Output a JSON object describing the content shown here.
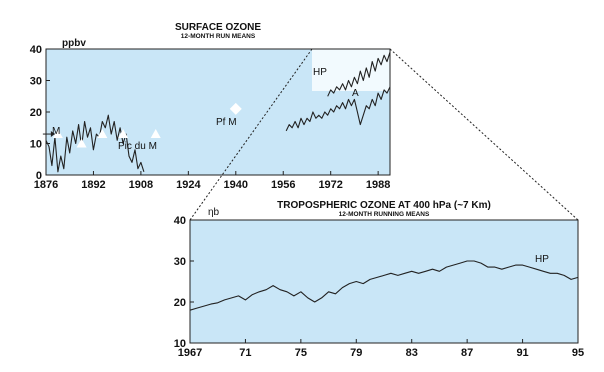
{
  "chart_data": [
    {
      "type": "line",
      "title": "SURFACE OZONE",
      "subtitle": "12-MONTH RUN MEANS",
      "ylabel": "ppbv",
      "xlim": [
        1876,
        1992
      ],
      "ylim": [
        0,
        40
      ],
      "x_ticks": [
        "1876",
        "1892",
        "1908",
        "1924",
        "1940",
        "1956",
        "1972",
        "1988"
      ],
      "y_ticks": [
        "0",
        "10",
        "20",
        "30",
        "40"
      ],
      "grid": false,
      "series": [
        {
          "name": "M",
          "marker": "arrow",
          "points": [
            [
              1876,
              11
            ],
            [
              1877,
              9
            ],
            [
              1878,
              3
            ],
            [
              1879,
              12
            ],
            [
              1880,
              1
            ],
            [
              1881,
              6
            ],
            [
              1882,
              2
            ],
            [
              1883,
              12
            ],
            [
              1884,
              7
            ],
            [
              1885,
              14
            ],
            [
              1886,
              10
            ],
            [
              1887,
              16
            ],
            [
              1888,
              9
            ],
            [
              1889,
              17
            ],
            [
              1890,
              12
            ],
            [
              1891,
              15
            ],
            [
              1892,
              8
            ],
            [
              1893,
              13
            ],
            [
              1894,
              12
            ],
            [
              1895,
              17
            ],
            [
              1896,
              15
            ],
            [
              1897,
              19
            ],
            [
              1898,
              13
            ],
            [
              1899,
              17
            ],
            [
              1900,
              11
            ],
            [
              1901,
              15
            ],
            [
              1902,
              10
            ],
            [
              1903,
              13
            ],
            [
              1904,
              6
            ],
            [
              1905,
              4
            ],
            [
              1906,
              8
            ],
            [
              1907,
              2
            ],
            [
              1908,
              4
            ],
            [
              1909,
              1
            ]
          ]
        },
        {
          "name": "Pic du M",
          "marker": "triangle",
          "points": [
            [
              1880,
              13
            ],
            [
              1888,
              10
            ],
            [
              1895,
              13
            ],
            [
              1902,
              13
            ],
            [
              1913,
              13
            ]
          ]
        },
        {
          "name": "Pf M",
          "marker": "diamond",
          "points": [
            [
              1940,
              21
            ]
          ]
        },
        {
          "name": "HP",
          "points": [
            [
              1971,
              25
            ],
            [
              1972,
              27
            ],
            [
              1973,
              26
            ],
            [
              1974,
              28
            ],
            [
              1975,
              27
            ],
            [
              1976,
              29
            ],
            [
              1977,
              27
            ],
            [
              1978,
              30
            ],
            [
              1979,
              28
            ],
            [
              1980,
              31
            ],
            [
              1981,
              29
            ],
            [
              1982,
              33
            ],
            [
              1983,
              30
            ],
            [
              1984,
              34
            ],
            [
              1985,
              31
            ],
            [
              1986,
              36
            ],
            [
              1987,
              33
            ],
            [
              1988,
              37
            ],
            [
              1989,
              35
            ],
            [
              1990,
              38
            ],
            [
              1991,
              36
            ],
            [
              1992,
              39
            ]
          ]
        },
        {
          "name": "A",
          "points": [
            [
              1957,
              14
            ],
            [
              1958,
              16
            ],
            [
              1959,
              15
            ],
            [
              1960,
              17
            ],
            [
              1961,
              15
            ],
            [
              1962,
              18
            ],
            [
              1963,
              16
            ],
            [
              1964,
              18
            ],
            [
              1965,
              17
            ],
            [
              1966,
              20
            ],
            [
              1967,
              18
            ],
            [
              1968,
              19
            ],
            [
              1969,
              18
            ],
            [
              1970,
              20
            ],
            [
              1971,
              19
            ],
            [
              1972,
              21
            ],
            [
              1973,
              20
            ],
            [
              1974,
              22
            ],
            [
              1975,
              21
            ],
            [
              1976,
              23
            ],
            [
              1977,
              21
            ],
            [
              1978,
              24
            ],
            [
              1979,
              22
            ],
            [
              1980,
              24
            ],
            [
              1981,
              20
            ],
            [
              1982,
              16
            ],
            [
              1983,
              19
            ],
            [
              1984,
              22
            ],
            [
              1985,
              21
            ],
            [
              1986,
              24
            ],
            [
              1987,
              22
            ],
            [
              1988,
              26
            ],
            [
              1989,
              24
            ],
            [
              1990,
              27
            ],
            [
              1991,
              26
            ],
            [
              1992,
              28
            ]
          ]
        }
      ]
    },
    {
      "type": "line",
      "title": "TROPOSPHERIC OZONE AT 400 hPa (~7 Km)",
      "subtitle": "12-MONTH RUNNING MEANS",
      "ylabel": "ηb",
      "xlim": [
        1967,
        1995
      ],
      "ylim": [
        10,
        40
      ],
      "x_ticks": [
        "1967",
        "71",
        "75",
        "79",
        "83",
        "87",
        "91",
        "95"
      ],
      "y_ticks": [
        "10",
        "20",
        "30",
        "40"
      ],
      "grid": false,
      "series": [
        {
          "name": "HP",
          "points": [
            [
              1967.0,
              18
            ],
            [
              1967.5,
              18.5
            ],
            [
              1968.0,
              19
            ],
            [
              1968.5,
              19.5
            ],
            [
              1969.0,
              19.8
            ],
            [
              1969.5,
              20.5
            ],
            [
              1970.0,
              21
            ],
            [
              1970.5,
              21.5
            ],
            [
              1971.0,
              20.5
            ],
            [
              1971.5,
              21.8
            ],
            [
              1972.0,
              22.5
            ],
            [
              1972.5,
              23
            ],
            [
              1973.0,
              24
            ],
            [
              1973.5,
              23
            ],
            [
              1974.0,
              22.5
            ],
            [
              1974.5,
              21.5
            ],
            [
              1975.0,
              22.5
            ],
            [
              1975.5,
              21
            ],
            [
              1976.0,
              20
            ],
            [
              1976.5,
              21
            ],
            [
              1977.0,
              22.5
            ],
            [
              1977.5,
              22
            ],
            [
              1978.0,
              23.5
            ],
            [
              1978.5,
              24.5
            ],
            [
              1979.0,
              25
            ],
            [
              1979.5,
              24.5
            ],
            [
              1980.0,
              25.5
            ],
            [
              1980.5,
              26
            ],
            [
              1981.0,
              26.5
            ],
            [
              1981.5,
              27
            ],
            [
              1982.0,
              26.5
            ],
            [
              1982.5,
              27
            ],
            [
              1983.0,
              27.5
            ],
            [
              1983.5,
              27
            ],
            [
              1984.0,
              27.5
            ],
            [
              1984.5,
              28
            ],
            [
              1985.0,
              27.5
            ],
            [
              1985.5,
              28.5
            ],
            [
              1986.0,
              29
            ],
            [
              1986.5,
              29.5
            ],
            [
              1987.0,
              30
            ],
            [
              1987.5,
              30
            ],
            [
              1988.0,
              29.5
            ],
            [
              1988.5,
              28.5
            ],
            [
              1989.0,
              28.5
            ],
            [
              1989.5,
              28
            ],
            [
              1990.0,
              28.5
            ],
            [
              1990.5,
              29
            ],
            [
              1991.0,
              29
            ],
            [
              1991.5,
              28.5
            ],
            [
              1992.0,
              28
            ],
            [
              1992.5,
              27.5
            ],
            [
              1993.0,
              27
            ],
            [
              1993.5,
              27
            ],
            [
              1994.0,
              26.5
            ],
            [
              1994.5,
              25.5
            ],
            [
              1995.0,
              26
            ]
          ]
        }
      ]
    }
  ]
}
